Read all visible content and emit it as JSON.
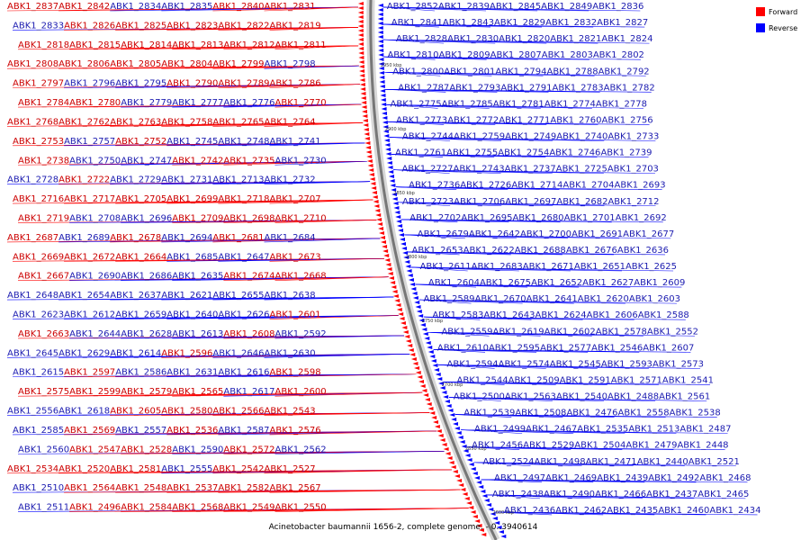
{
  "caption": "Acinetobacter baumannii 1656-2, complete genome. - 0..3940614",
  "legend": [
    {
      "label": "Forward",
      "color": "#ff0000"
    },
    {
      "label": "Reverse",
      "color": "#0000ff"
    }
  ],
  "colors": {
    "forward": "#ff0000",
    "reverse": "#0000ff",
    "backbone": "#777777"
  },
  "ticks": [
    "2950 kbp",
    "2900 kbp",
    "2850 kbp",
    "2800 kbp",
    "2750 kbp",
    "2700 kbp",
    "2650 kbp",
    "2600 kbp"
  ],
  "left_labels": [
    {
      "t": "ABK1_2837",
      "s": "f"
    },
    {
      "t": "ABK1_2842",
      "s": "f"
    },
    {
      "t": "ABK1_2834",
      "s": "r"
    },
    {
      "t": "ABK1_2835",
      "s": "r"
    },
    {
      "t": "ABK1_2840",
      "s": "f"
    },
    {
      "t": "ABK1_2831",
      "s": "f"
    },
    {
      "t": "ABK1_2833",
      "s": "r"
    },
    {
      "t": "ABK1_2826",
      "s": "f"
    },
    {
      "t": "ABK1_2825",
      "s": "f"
    },
    {
      "t": "ABK1_2823",
      "s": "f"
    },
    {
      "t": "ABK1_2822",
      "s": "f"
    },
    {
      "t": "ABK1_2819",
      "s": "f"
    },
    {
      "t": "ABK1_2818",
      "s": "f"
    },
    {
      "t": "ABK1_2815",
      "s": "f"
    },
    {
      "t": "ABK1_2814",
      "s": "f"
    },
    {
      "t": "ABK1_2813",
      "s": "f"
    },
    {
      "t": "ABK1_2812",
      "s": "f"
    },
    {
      "t": "ABK1_2811",
      "s": "f"
    },
    {
      "t": "ABK1_2808",
      "s": "f"
    },
    {
      "t": "ABK1_2806",
      "s": "f"
    },
    {
      "t": "ABK1_2805",
      "s": "f"
    },
    {
      "t": "ABK1_2804",
      "s": "f"
    },
    {
      "t": "ABK1_2799",
      "s": "f"
    },
    {
      "t": "ABK1_2798",
      "s": "r"
    },
    {
      "t": "ABK1_2797",
      "s": "f"
    },
    {
      "t": "ABK1_2796",
      "s": "r"
    },
    {
      "t": "ABK1_2795",
      "s": "r"
    },
    {
      "t": "ABK1_2790",
      "s": "f"
    },
    {
      "t": "ABK1_2789",
      "s": "f"
    },
    {
      "t": "ABK1_2786",
      "s": "f"
    },
    {
      "t": "ABK1_2784",
      "s": "f"
    },
    {
      "t": "ABK1_2780",
      "s": "f"
    },
    {
      "t": "ABK1_2779",
      "s": "r"
    },
    {
      "t": "ABK1_2777",
      "s": "r"
    },
    {
      "t": "ABK1_2776",
      "s": "r"
    },
    {
      "t": "ABK1_2770",
      "s": "f"
    },
    {
      "t": "ABK1_2768",
      "s": "f"
    },
    {
      "t": "ABK1_2762",
      "s": "f"
    },
    {
      "t": "ABK1_2763",
      "s": "f"
    },
    {
      "t": "ABK1_2758",
      "s": "f"
    },
    {
      "t": "ABK1_2765",
      "s": "f"
    },
    {
      "t": "ABK1_2764",
      "s": "f"
    },
    {
      "t": "ABK1_2753",
      "s": "f"
    },
    {
      "t": "ABK1_2757",
      "s": "r"
    },
    {
      "t": "ABK1_2752",
      "s": "f"
    },
    {
      "t": "ABK1_2745",
      "s": "r"
    },
    {
      "t": "ABK1_2748",
      "s": "r"
    },
    {
      "t": "ABK1_2741",
      "s": "r"
    },
    {
      "t": "ABK1_2738",
      "s": "f"
    },
    {
      "t": "ABK1_2750",
      "s": "r"
    },
    {
      "t": "ABK1_2747",
      "s": "r"
    },
    {
      "t": "ABK1_2742",
      "s": "f"
    },
    {
      "t": "ABK1_2735",
      "s": "f"
    },
    {
      "t": "ABK1_2730",
      "s": "r"
    },
    {
      "t": "ABK1_2728",
      "s": "r"
    },
    {
      "t": "ABK1_2722",
      "s": "f"
    },
    {
      "t": "ABK1_2729",
      "s": "r"
    },
    {
      "t": "ABK1_2731",
      "s": "r"
    },
    {
      "t": "ABK1_2713",
      "s": "r"
    },
    {
      "t": "ABK1_2732",
      "s": "r"
    },
    {
      "t": "ABK1_2716",
      "s": "f"
    },
    {
      "t": "ABK1_2717",
      "s": "f"
    },
    {
      "t": "ABK1_2705",
      "s": "f"
    },
    {
      "t": "ABK1_2699",
      "s": "f"
    },
    {
      "t": "ABK1_2718",
      "s": "f"
    },
    {
      "t": "ABK1_2707",
      "s": "f"
    },
    {
      "t": "ABK1_2719",
      "s": "f"
    },
    {
      "t": "ABK1_2708",
      "s": "r"
    },
    {
      "t": "ABK1_2696",
      "s": "r"
    },
    {
      "t": "ABK1_2709",
      "s": "f"
    },
    {
      "t": "ABK1_2698",
      "s": "f"
    },
    {
      "t": "ABK1_2710",
      "s": "f"
    },
    {
      "t": "ABK1_2687",
      "s": "f"
    },
    {
      "t": "ABK1_2689",
      "s": "r"
    },
    {
      "t": "ABK1_2678",
      "s": "f"
    },
    {
      "t": "ABK1_2694",
      "s": "r"
    },
    {
      "t": "ABK1_2681",
      "s": "f"
    },
    {
      "t": "ABK1_2684",
      "s": "r"
    },
    {
      "t": "ABK1_2669",
      "s": "f"
    },
    {
      "t": "ABK1_2672",
      "s": "f"
    },
    {
      "t": "ABK1_2664",
      "s": "f"
    },
    {
      "t": "ABK1_2685",
      "s": "r"
    },
    {
      "t": "ABK1_2647",
      "s": "r"
    },
    {
      "t": "ABK1_2673",
      "s": "f"
    },
    {
      "t": "ABK1_2667",
      "s": "f"
    },
    {
      "t": "ABK1_2690",
      "s": "r"
    },
    {
      "t": "ABK1_2686",
      "s": "r"
    },
    {
      "t": "ABK1_2635",
      "s": "r"
    },
    {
      "t": "ABK1_2674",
      "s": "f"
    },
    {
      "t": "ABK1_2668",
      "s": "f"
    },
    {
      "t": "ABK1_2648",
      "s": "r"
    },
    {
      "t": "ABK1_2654",
      "s": "r"
    },
    {
      "t": "ABK1_2637",
      "s": "r"
    },
    {
      "t": "ABK1_2621",
      "s": "r"
    },
    {
      "t": "ABK1_2655",
      "s": "r"
    },
    {
      "t": "ABK1_2638",
      "s": "r"
    },
    {
      "t": "ABK1_2623",
      "s": "r"
    },
    {
      "t": "ABK1_2612",
      "s": "r"
    },
    {
      "t": "ABK1_2659",
      "s": "r"
    },
    {
      "t": "ABK1_2640",
      "s": "r"
    },
    {
      "t": "ABK1_2626",
      "s": "r"
    },
    {
      "t": "ABK1_2601",
      "s": "f"
    },
    {
      "t": "ABK1_2663",
      "s": "f"
    },
    {
      "t": "ABK1_2644",
      "s": "r"
    },
    {
      "t": "ABK1_2628",
      "s": "r"
    },
    {
      "t": "ABK1_2613",
      "s": "r"
    },
    {
      "t": "ABK1_2608",
      "s": "f"
    },
    {
      "t": "ABK1_2592",
      "s": "r"
    },
    {
      "t": "ABK1_2645",
      "s": "r"
    },
    {
      "t": "ABK1_2629",
      "s": "r"
    },
    {
      "t": "ABK1_2614",
      "s": "r"
    },
    {
      "t": "ABK1_2596",
      "s": "f"
    },
    {
      "t": "ABK1_2646",
      "s": "r"
    },
    {
      "t": "ABK1_2630",
      "s": "r"
    },
    {
      "t": "ABK1_2615",
      "s": "r"
    },
    {
      "t": "ABK1_2597",
      "s": "f"
    },
    {
      "t": "ABK1_2586",
      "s": "r"
    },
    {
      "t": "ABK1_2631",
      "s": "r"
    },
    {
      "t": "ABK1_2616",
      "s": "r"
    },
    {
      "t": "ABK1_2598",
      "s": "f"
    },
    {
      "t": "ABK1_2575",
      "s": "f"
    },
    {
      "t": "ABK1_2599",
      "s": "f"
    },
    {
      "t": "ABK1_2579",
      "s": "f"
    },
    {
      "t": "ABK1_2565",
      "s": "f"
    },
    {
      "t": "ABK1_2617",
      "s": "r"
    },
    {
      "t": "ABK1_2600",
      "s": "f"
    },
    {
      "t": "ABK1_2556",
      "s": "r"
    },
    {
      "t": "ABK1_2618",
      "s": "r"
    },
    {
      "t": "ABK1_2605",
      "s": "f"
    },
    {
      "t": "ABK1_2580",
      "s": "f"
    },
    {
      "t": "ABK1_2566",
      "s": "f"
    },
    {
      "t": "ABK1_2543",
      "s": "f"
    },
    {
      "t": "ABK1_2585",
      "s": "r"
    },
    {
      "t": "ABK1_2569",
      "s": "f"
    },
    {
      "t": "ABK1_2557",
      "s": "r"
    },
    {
      "t": "ABK1_2536",
      "s": "f"
    },
    {
      "t": "ABK1_2587",
      "s": "r"
    },
    {
      "t": "ABK1_2576",
      "s": "f"
    },
    {
      "t": "ABK1_2560",
      "s": "r"
    },
    {
      "t": "ABK1_2547",
      "s": "f"
    },
    {
      "t": "ABK1_2528",
      "s": "f"
    },
    {
      "t": "ABK1_2590",
      "s": "r"
    },
    {
      "t": "ABK1_2572",
      "s": "f"
    },
    {
      "t": "ABK1_2562",
      "s": "r"
    },
    {
      "t": "ABK1_2534",
      "s": "f"
    },
    {
      "t": "ABK1_2520",
      "s": "f"
    },
    {
      "t": "ABK1_2581",
      "s": "f"
    },
    {
      "t": "ABK1_2555",
      "s": "r"
    },
    {
      "t": "ABK1_2542",
      "s": "f"
    },
    {
      "t": "ABK1_2527",
      "s": "f"
    },
    {
      "t": "ABK1_2510",
      "s": "r"
    },
    {
      "t": "ABK1_2564",
      "s": "f"
    },
    {
      "t": "ABK1_2548",
      "s": "f"
    },
    {
      "t": "ABK1_2537",
      "s": "f"
    },
    {
      "t": "ABK1_2582",
      "s": "f"
    },
    {
      "t": "ABK1_2567",
      "s": "f"
    },
    {
      "t": "ABK1_2511",
      "s": "r"
    },
    {
      "t": "ABK1_2496",
      "s": "f"
    },
    {
      "t": "ABK1_2584",
      "s": "f"
    },
    {
      "t": "ABK1_2568",
      "s": "f"
    },
    {
      "t": "ABK1_2549",
      "s": "f"
    },
    {
      "t": "ABK1_2550",
      "s": "f"
    }
  ],
  "right_labels": [
    {
      "t": "ABK1_2852",
      "s": "r"
    },
    {
      "t": "ABK1_2839",
      "s": "r"
    },
    {
      "t": "ABK1_2845",
      "s": "r"
    },
    {
      "t": "ABK1_2849",
      "s": "r"
    },
    {
      "t": "ABK1_2836",
      "s": "r"
    },
    {
      "t": "ABK1_2841",
      "s": "r"
    },
    {
      "t": "ABK1_2843",
      "s": "r"
    },
    {
      "t": "ABK1_2829",
      "s": "r"
    },
    {
      "t": "ABK1_2832",
      "s": "r"
    },
    {
      "t": "ABK1_2827",
      "s": "r"
    },
    {
      "t": "ABK1_2828",
      "s": "r"
    },
    {
      "t": "ABK1_2830",
      "s": "r"
    },
    {
      "t": "ABK1_2820",
      "s": "r"
    },
    {
      "t": "ABK1_2821",
      "s": "r"
    },
    {
      "t": "ABK1_2824",
      "s": "r"
    },
    {
      "t": "ABK1_2810",
      "s": "r"
    },
    {
      "t": "ABK1_2809",
      "s": "r"
    },
    {
      "t": "ABK1_2807",
      "s": "r"
    },
    {
      "t": "ABK1_2803",
      "s": "r"
    },
    {
      "t": "ABK1_2802",
      "s": "r"
    },
    {
      "t": "ABK1_2800",
      "s": "r"
    },
    {
      "t": "ABK1_2801",
      "s": "r"
    },
    {
      "t": "ABK1_2794",
      "s": "r"
    },
    {
      "t": "ABK1_2788",
      "s": "r"
    },
    {
      "t": "ABK1_2792",
      "s": "r"
    },
    {
      "t": "ABK1_2787",
      "s": "r"
    },
    {
      "t": "ABK1_2793",
      "s": "r"
    },
    {
      "t": "ABK1_2791",
      "s": "r"
    },
    {
      "t": "ABK1_2783",
      "s": "r"
    },
    {
      "t": "ABK1_2782",
      "s": "r"
    },
    {
      "t": "ABK1_2775",
      "s": "r"
    },
    {
      "t": "ABK1_2785",
      "s": "r"
    },
    {
      "t": "ABK1_2781",
      "s": "r"
    },
    {
      "t": "ABK1_2774",
      "s": "r"
    },
    {
      "t": "ABK1_2778",
      "s": "r"
    },
    {
      "t": "ABK1_2773",
      "s": "r"
    },
    {
      "t": "ABK1_2772",
      "s": "r"
    },
    {
      "t": "ABK1_2771",
      "s": "r"
    },
    {
      "t": "ABK1_2760",
      "s": "r"
    },
    {
      "t": "ABK1_2756",
      "s": "r"
    },
    {
      "t": "ABK1_2744",
      "s": "r"
    },
    {
      "t": "ABK1_2759",
      "s": "r"
    },
    {
      "t": "ABK1_2749",
      "s": "r"
    },
    {
      "t": "ABK1_2740",
      "s": "r"
    },
    {
      "t": "ABK1_2733",
      "s": "r"
    },
    {
      "t": "ABK1_2761",
      "s": "r"
    },
    {
      "t": "ABK1_2755",
      "s": "r"
    },
    {
      "t": "ABK1_2754",
      "s": "r"
    },
    {
      "t": "ABK1_2746",
      "s": "r"
    },
    {
      "t": "ABK1_2739",
      "s": "r"
    },
    {
      "t": "ABK1_2727",
      "s": "r"
    },
    {
      "t": "ABK1_2743",
      "s": "r"
    },
    {
      "t": "ABK1_2737",
      "s": "r"
    },
    {
      "t": "ABK1_2725",
      "s": "r"
    },
    {
      "t": "ABK1_2703",
      "s": "r"
    },
    {
      "t": "ABK1_2736",
      "s": "r"
    },
    {
      "t": "ABK1_2726",
      "s": "r"
    },
    {
      "t": "ABK1_2714",
      "s": "r"
    },
    {
      "t": "ABK1_2704",
      "s": "r"
    },
    {
      "t": "ABK1_2693",
      "s": "r"
    },
    {
      "t": "ABK1_2723",
      "s": "r"
    },
    {
      "t": "ABK1_2706",
      "s": "r"
    },
    {
      "t": "ABK1_2697",
      "s": "r"
    },
    {
      "t": "ABK1_2682",
      "s": "r"
    },
    {
      "t": "ABK1_2712",
      "s": "r"
    },
    {
      "t": "ABK1_2702",
      "s": "r"
    },
    {
      "t": "ABK1_2695",
      "s": "r"
    },
    {
      "t": "ABK1_2680",
      "s": "r"
    },
    {
      "t": "ABK1_2701",
      "s": "r"
    },
    {
      "t": "ABK1_2692",
      "s": "r"
    },
    {
      "t": "ABK1_2679",
      "s": "r"
    },
    {
      "t": "ABK1_2642",
      "s": "r"
    },
    {
      "t": "ABK1_2700",
      "s": "r"
    },
    {
      "t": "ABK1_2691",
      "s": "r"
    },
    {
      "t": "ABK1_2677",
      "s": "r"
    },
    {
      "t": "ABK1_2653",
      "s": "r"
    },
    {
      "t": "ABK1_2622",
      "s": "r"
    },
    {
      "t": "ABK1_2688",
      "s": "r"
    },
    {
      "t": "ABK1_2676",
      "s": "r"
    },
    {
      "t": "ABK1_2636",
      "s": "r"
    },
    {
      "t": "ABK1_2611",
      "s": "r"
    },
    {
      "t": "ABK1_2683",
      "s": "r"
    },
    {
      "t": "ABK1_2671",
      "s": "r"
    },
    {
      "t": "ABK1_2651",
      "s": "r"
    },
    {
      "t": "ABK1_2625",
      "s": "r"
    },
    {
      "t": "ABK1_2604",
      "s": "r"
    },
    {
      "t": "ABK1_2675",
      "s": "r"
    },
    {
      "t": "ABK1_2652",
      "s": "r"
    },
    {
      "t": "ABK1_2627",
      "s": "r"
    },
    {
      "t": "ABK1_2609",
      "s": "r"
    },
    {
      "t": "ABK1_2589",
      "s": "r"
    },
    {
      "t": "ABK1_2670",
      "s": "r"
    },
    {
      "t": "ABK1_2641",
      "s": "r"
    },
    {
      "t": "ABK1_2620",
      "s": "r"
    },
    {
      "t": "ABK1_2603",
      "s": "r"
    },
    {
      "t": "ABK1_2583",
      "s": "r"
    },
    {
      "t": "ABK1_2643",
      "s": "r"
    },
    {
      "t": "ABK1_2624",
      "s": "r"
    },
    {
      "t": "ABK1_2606",
      "s": "r"
    },
    {
      "t": "ABK1_2588",
      "s": "r"
    },
    {
      "t": "ABK1_2559",
      "s": "r"
    },
    {
      "t": "ABK1_2619",
      "s": "r"
    },
    {
      "t": "ABK1_2602",
      "s": "r"
    },
    {
      "t": "ABK1_2578",
      "s": "r"
    },
    {
      "t": "ABK1_2552",
      "s": "r"
    },
    {
      "t": "ABK1_2610",
      "s": "r"
    },
    {
      "t": "ABK1_2595",
      "s": "r"
    },
    {
      "t": "ABK1_2577",
      "s": "r"
    },
    {
      "t": "ABK1_2546",
      "s": "r"
    },
    {
      "t": "ABK1_2607",
      "s": "r"
    },
    {
      "t": "ABK1_2594",
      "s": "r"
    },
    {
      "t": "ABK1_2574",
      "s": "r"
    },
    {
      "t": "ABK1_2545",
      "s": "r"
    },
    {
      "t": "ABK1_2593",
      "s": "r"
    },
    {
      "t": "ABK1_2573",
      "s": "r"
    },
    {
      "t": "ABK1_2544",
      "s": "r"
    },
    {
      "t": "ABK1_2509",
      "s": "r"
    },
    {
      "t": "ABK1_2591",
      "s": "r"
    },
    {
      "t": "ABK1_2571",
      "s": "r"
    },
    {
      "t": "ABK1_2541",
      "s": "r"
    },
    {
      "t": "ABK1_2500",
      "s": "r"
    },
    {
      "t": "ABK1_2563",
      "s": "r"
    },
    {
      "t": "ABK1_2540",
      "s": "r"
    },
    {
      "t": "ABK1_2488",
      "s": "r"
    },
    {
      "t": "ABK1_2561",
      "s": "r"
    },
    {
      "t": "ABK1_2539",
      "s": "r"
    },
    {
      "t": "ABK1_2508",
      "s": "r"
    },
    {
      "t": "ABK1_2476",
      "s": "r"
    },
    {
      "t": "ABK1_2558",
      "s": "r"
    },
    {
      "t": "ABK1_2538",
      "s": "r"
    },
    {
      "t": "ABK1_2499",
      "s": "r"
    },
    {
      "t": "ABK1_2467",
      "s": "r"
    },
    {
      "t": "ABK1_2535",
      "s": "r"
    },
    {
      "t": "ABK1_2513",
      "s": "r"
    },
    {
      "t": "ABK1_2487",
      "s": "r"
    },
    {
      "t": "ABK1_2456",
      "s": "r"
    },
    {
      "t": "ABK1_2529",
      "s": "r"
    },
    {
      "t": "ABK1_2504",
      "s": "r"
    },
    {
      "t": "ABK1_2479",
      "s": "r"
    },
    {
      "t": "ABK1_2448",
      "s": "r"
    },
    {
      "t": "ABK1_2524",
      "s": "r"
    },
    {
      "t": "ABK1_2498",
      "s": "r"
    },
    {
      "t": "ABK1_2471",
      "s": "r"
    },
    {
      "t": "ABK1_2440",
      "s": "r"
    },
    {
      "t": "ABK1_2521",
      "s": "r"
    },
    {
      "t": "ABK1_2497",
      "s": "r"
    },
    {
      "t": "ABK1_2469",
      "s": "r"
    },
    {
      "t": "ABK1_2439",
      "s": "r"
    },
    {
      "t": "ABK1_2492",
      "s": "r"
    },
    {
      "t": "ABK1_2468",
      "s": "r"
    },
    {
      "t": "ABK1_2438",
      "s": "r"
    },
    {
      "t": "ABK1_2490",
      "s": "r"
    },
    {
      "t": "ABK1_2466",
      "s": "r"
    },
    {
      "t": "ABK1_2437",
      "s": "r"
    },
    {
      "t": "ABK1_2465",
      "s": "r"
    },
    {
      "t": "ABK1_2436",
      "s": "r"
    },
    {
      "t": "ABK1_2462",
      "s": "r"
    },
    {
      "t": "ABK1_2435",
      "s": "r"
    },
    {
      "t": "ABK1_2460",
      "s": "r"
    },
    {
      "t": "ABK1_2434",
      "s": "r"
    }
  ]
}
